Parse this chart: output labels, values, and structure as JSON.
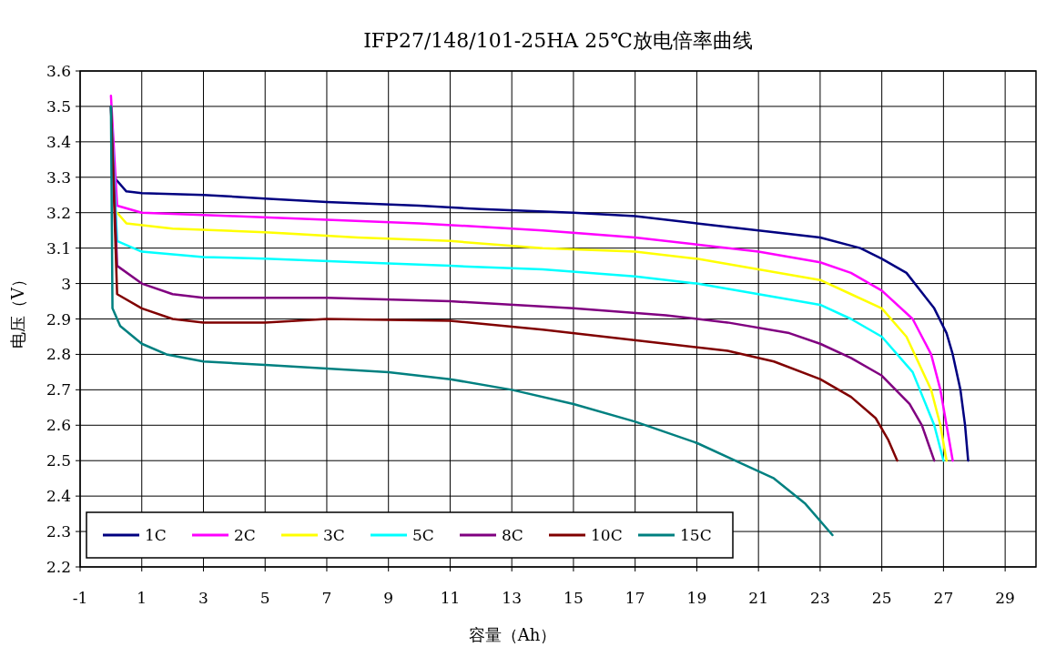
{
  "chart_data": {
    "type": "line",
    "title": "IFP27/148/101-25HA 25℃放电倍率曲线",
    "xlabel": "容量（Ah）",
    "ylabel": "电压（V）",
    "xlim": [
      -1,
      30
    ],
    "ylim": [
      2.2,
      3.6
    ],
    "xticks": [
      -1,
      1,
      3,
      5,
      7,
      9,
      11,
      13,
      15,
      17,
      19,
      21,
      23,
      25,
      27,
      29
    ],
    "yticks": [
      2.2,
      2.3,
      2.4,
      2.5,
      2.6,
      2.7,
      2.8,
      2.9,
      3,
      3.1,
      3.2,
      3.3,
      3.4,
      3.5,
      3.6
    ],
    "grid": true,
    "legend": "bottom left",
    "series": [
      {
        "name": "1C",
        "color": "#000080",
        "x": [
          0.1,
          0.5,
          1,
          3,
          5,
          7,
          10,
          12,
          15,
          17,
          19,
          21,
          23,
          24.3,
          25,
          25.8,
          26.7,
          27.1,
          27.3,
          27.55,
          27.7,
          27.8
        ],
        "values": [
          3.3,
          3.26,
          3.255,
          3.25,
          3.24,
          3.23,
          3.22,
          3.21,
          3.2,
          3.19,
          3.17,
          3.15,
          3.13,
          3.1,
          3.07,
          3.03,
          2.93,
          2.86,
          2.8,
          2.7,
          2.6,
          2.5
        ]
      },
      {
        "name": "2C",
        "color": "#ff00ff",
        "x": [
          0,
          0.2,
          1,
          4,
          7,
          10,
          14,
          17,
          19,
          21,
          23,
          24,
          25,
          26,
          26.6,
          26.9,
          27.1,
          27.3
        ],
        "values": [
          3.53,
          3.22,
          3.2,
          3.19,
          3.18,
          3.17,
          3.15,
          3.13,
          3.11,
          3.09,
          3.06,
          3.03,
          2.98,
          2.9,
          2.8,
          2.7,
          2.6,
          2.5
        ]
      },
      {
        "name": "3C",
        "color": "#ffff00",
        "x": [
          0.2,
          0.5,
          2,
          5,
          8,
          11,
          14,
          17,
          19,
          21,
          23,
          24,
          25,
          25.8,
          26.6,
          26.9,
          27.1
        ],
        "values": [
          3.2,
          3.17,
          3.155,
          3.145,
          3.13,
          3.12,
          3.1,
          3.09,
          3.07,
          3.04,
          3.01,
          2.97,
          2.93,
          2.85,
          2.7,
          2.6,
          2.5
        ]
      },
      {
        "name": "5C",
        "color": "#00ffff",
        "x": [
          0,
          0.2,
          1,
          3,
          5,
          8,
          11,
          14,
          17,
          19,
          21,
          23,
          24,
          25,
          26,
          26.7,
          27
        ],
        "values": [
          3.5,
          3.12,
          3.09,
          3.075,
          3.07,
          3.06,
          3.05,
          3.04,
          3.02,
          3,
          2.97,
          2.94,
          2.9,
          2.85,
          2.75,
          2.6,
          2.5
        ]
      },
      {
        "name": "8C",
        "color": "#800080",
        "x": [
          0,
          0.2,
          1,
          2,
          3,
          7,
          11,
          15,
          18,
          20,
          22,
          23,
          24,
          25,
          25.9,
          26.3,
          26.7
        ],
        "values": [
          3.5,
          3.05,
          3,
          2.97,
          2.96,
          2.96,
          2.95,
          2.93,
          2.91,
          2.89,
          2.86,
          2.83,
          2.79,
          2.74,
          2.66,
          2.6,
          2.5
        ]
      },
      {
        "name": "10C",
        "color": "#800000",
        "x": [
          0,
          0.2,
          1,
          2,
          3,
          5,
          7,
          11,
          14,
          16,
          18,
          20,
          21.5,
          23,
          24,
          24.8,
          25.2,
          25.5
        ],
        "values": [
          3.5,
          2.97,
          2.93,
          2.9,
          2.89,
          2.89,
          2.9,
          2.895,
          2.87,
          2.85,
          2.83,
          2.81,
          2.78,
          2.73,
          2.68,
          2.62,
          2.56,
          2.5
        ]
      },
      {
        "name": "15C",
        "color": "#008080",
        "x": [
          0,
          0.05,
          0.3,
          1,
          1.8,
          3,
          5,
          7,
          9,
          11,
          13,
          15,
          17,
          19,
          20.5,
          21.5,
          22.5,
          23.4
        ],
        "values": [
          3.5,
          2.93,
          2.88,
          2.83,
          2.8,
          2.78,
          2.77,
          2.76,
          2.75,
          2.73,
          2.7,
          2.66,
          2.61,
          2.55,
          2.49,
          2.45,
          2.38,
          2.29
        ]
      }
    ]
  }
}
